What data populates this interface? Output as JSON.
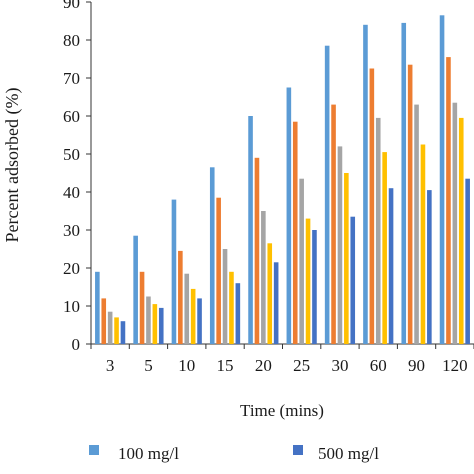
{
  "chart_data": {
    "type": "bar",
    "title": "",
    "xlabel": "Time (mins)",
    "ylabel": "Percent adsorbed (%)",
    "categories": [
      "3",
      "5",
      "10",
      "15",
      "20",
      "25",
      "30",
      "60",
      "90",
      "120"
    ],
    "ylim": [
      0,
      90
    ],
    "yticks": [
      0,
      10,
      20,
      30,
      40,
      50,
      60,
      70,
      80,
      90
    ],
    "grid": false,
    "legend_position": "bottom",
    "series": [
      {
        "name": "100 mg/l",
        "color": "#5B9BD5",
        "values": [
          19,
          28.5,
          38,
          46.5,
          60,
          67.5,
          78.5,
          84,
          84.5,
          86.5
        ]
      },
      {
        "color": "#ED7D31",
        "values": [
          12,
          19,
          24.5,
          38.5,
          49,
          58.5,
          63,
          72.5,
          73.5,
          75.5
        ]
      },
      {
        "color": "#A5A5A5",
        "values": [
          8.5,
          12.5,
          18.5,
          25,
          35,
          43.5,
          52,
          59.5,
          63,
          63.5
        ]
      },
      {
        "color": "#FFC000",
        "values": [
          7,
          10.5,
          14.5,
          19,
          26.5,
          33,
          45,
          50.5,
          52.5,
          59.5
        ]
      },
      {
        "name": "500 mg/l",
        "color": "#4472C4",
        "values": [
          6,
          9.5,
          12,
          16,
          21.5,
          30,
          33.5,
          41,
          40.5,
          43.5
        ]
      }
    ]
  }
}
